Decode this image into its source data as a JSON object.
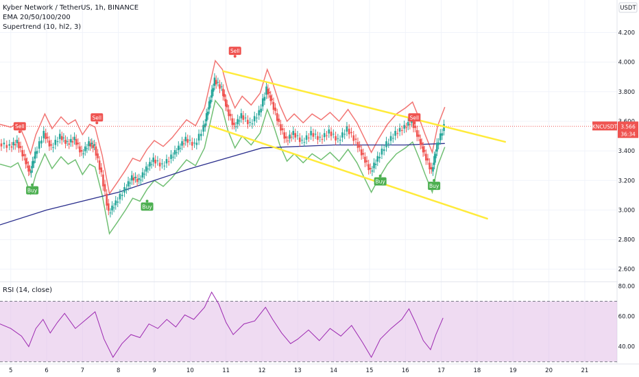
{
  "header": {
    "symbol_line": "Kyber Network / TetherUS, 1h, BINANCE",
    "indicator_1": "EMA 20/50/100/200",
    "indicator_2": "Supertrend (10, hl2, 3)"
  },
  "rsi_panel": {
    "label": "RSI (14, close)"
  },
  "price_axis": {
    "currency": "USDT"
  },
  "last_price": {
    "ticker": "KNCUSDT",
    "value": "3.566",
    "countdown": "36:34"
  },
  "colors": {
    "up": "#26a69a",
    "down": "#ef5350",
    "trendline": "#ffeb3b",
    "rsi_line": "#9c27b0",
    "rsi_band": "#e1bee7",
    "ema_long": "#2a2e8c"
  },
  "chart_data": {
    "type": "line",
    "price_ticks": [
      "4.200",
      "4.000",
      "3.800",
      "3.600",
      "3.400",
      "3.200",
      "3.000",
      "2.800",
      "2.600"
    ],
    "price_tick_values": [
      4.2,
      4.0,
      3.8,
      3.6,
      3.4,
      3.2,
      3.0,
      2.8,
      2.6
    ],
    "x_ticks": [
      "5",
      "6",
      "7",
      "8",
      "9",
      "10",
      "11",
      "12",
      "13",
      "14",
      "15",
      "16",
      "17",
      "18",
      "19",
      "20",
      "21"
    ],
    "rsi_ticks": [
      "80.00",
      "60.00",
      "40.00"
    ],
    "rsi_tick_values": [
      80,
      60,
      40
    ],
    "price_range": [
      2.52,
      4.42
    ],
    "rsi_range": [
      29,
      82
    ],
    "day_range": [
      4.7,
      21.9
    ],
    "signals": [
      {
        "type": "Sell",
        "day": 5.25,
        "price": 3.52
      },
      {
        "type": "Buy",
        "day": 5.6,
        "price": 3.18
      },
      {
        "type": "Sell",
        "day": 7.4,
        "price": 3.58
      },
      {
        "type": "Buy",
        "day": 8.8,
        "price": 3.07
      },
      {
        "type": "Sell",
        "day": 11.25,
        "price": 4.03
      },
      {
        "type": "Buy",
        "day": 15.3,
        "price": 3.24
      },
      {
        "type": "Sell",
        "day": 16.25,
        "price": 3.58
      },
      {
        "type": "Buy",
        "day": 16.8,
        "price": 3.21
      }
    ],
    "trendlines": [
      {
        "from": [
          10.9,
          3.94
        ],
        "to": [
          18.8,
          3.46
        ]
      },
      {
        "from": [
          10.55,
          3.57
        ],
        "to": [
          18.3,
          2.94
        ]
      }
    ],
    "rsi": {
      "upper": 70,
      "lower": 30,
      "points": [
        [
          4.7,
          55
        ],
        [
          5.0,
          52
        ],
        [
          5.3,
          47
        ],
        [
          5.5,
          40
        ],
        [
          5.7,
          52
        ],
        [
          5.9,
          58
        ],
        [
          6.1,
          49
        ],
        [
          6.3,
          56
        ],
        [
          6.5,
          62
        ],
        [
          6.8,
          52
        ],
        [
          7.1,
          58
        ],
        [
          7.35,
          63
        ],
        [
          7.6,
          45
        ],
        [
          7.85,
          33
        ],
        [
          8.1,
          42
        ],
        [
          8.35,
          48
        ],
        [
          8.6,
          46
        ],
        [
          8.85,
          55
        ],
        [
          9.1,
          52
        ],
        [
          9.35,
          58
        ],
        [
          9.6,
          53
        ],
        [
          9.85,
          61
        ],
        [
          10.1,
          58
        ],
        [
          10.4,
          66
        ],
        [
          10.6,
          76
        ],
        [
          10.8,
          68
        ],
        [
          11.0,
          56
        ],
        [
          11.2,
          48
        ],
        [
          11.5,
          55
        ],
        [
          11.8,
          57
        ],
        [
          12.1,
          66
        ],
        [
          12.3,
          58
        ],
        [
          12.55,
          49
        ],
        [
          12.8,
          42
        ],
        [
          13.0,
          45
        ],
        [
          13.3,
          51
        ],
        [
          13.6,
          44
        ],
        [
          13.9,
          52
        ],
        [
          14.2,
          47
        ],
        [
          14.5,
          54
        ],
        [
          14.8,
          43
        ],
        [
          15.05,
          33
        ],
        [
          15.3,
          45
        ],
        [
          15.6,
          52
        ],
        [
          15.9,
          58
        ],
        [
          16.1,
          65
        ],
        [
          16.3,
          55
        ],
        [
          16.5,
          44
        ],
        [
          16.7,
          38
        ],
        [
          16.85,
          48
        ],
        [
          17.05,
          59
        ]
      ]
    },
    "series": [
      {
        "kind": "price",
        "points": [
          [
            4.7,
            3.45
          ],
          [
            5.0,
            3.43
          ],
          [
            5.2,
            3.46
          ],
          [
            5.4,
            3.35
          ],
          [
            5.55,
            3.25
          ],
          [
            5.7,
            3.38
          ],
          [
            5.95,
            3.52
          ],
          [
            6.15,
            3.42
          ],
          [
            6.4,
            3.5
          ],
          [
            6.6,
            3.45
          ],
          [
            6.8,
            3.48
          ],
          [
            7.0,
            3.38
          ],
          [
            7.2,
            3.45
          ],
          [
            7.35,
            3.43
          ],
          [
            7.55,
            3.24
          ],
          [
            7.75,
            2.98
          ],
          [
            7.95,
            3.05
          ],
          [
            8.2,
            3.14
          ],
          [
            8.4,
            3.22
          ],
          [
            8.6,
            3.2
          ],
          [
            8.8,
            3.28
          ],
          [
            9.0,
            3.34
          ],
          [
            9.25,
            3.3
          ],
          [
            9.5,
            3.36
          ],
          [
            9.7,
            3.42
          ],
          [
            9.9,
            3.48
          ],
          [
            10.15,
            3.44
          ],
          [
            10.4,
            3.56
          ],
          [
            10.55,
            3.72
          ],
          [
            10.7,
            3.88
          ],
          [
            10.9,
            3.82
          ],
          [
            11.05,
            3.68
          ],
          [
            11.25,
            3.56
          ],
          [
            11.45,
            3.64
          ],
          [
            11.7,
            3.58
          ],
          [
            11.95,
            3.66
          ],
          [
            12.15,
            3.82
          ],
          [
            12.3,
            3.73
          ],
          [
            12.5,
            3.58
          ],
          [
            12.7,
            3.47
          ],
          [
            12.9,
            3.52
          ],
          [
            13.15,
            3.46
          ],
          [
            13.4,
            3.52
          ],
          [
            13.65,
            3.48
          ],
          [
            13.9,
            3.53
          ],
          [
            14.15,
            3.47
          ],
          [
            14.4,
            3.55
          ],
          [
            14.65,
            3.46
          ],
          [
            14.85,
            3.36
          ],
          [
            15.05,
            3.26
          ],
          [
            15.25,
            3.35
          ],
          [
            15.5,
            3.45
          ],
          [
            15.75,
            3.52
          ],
          [
            16.0,
            3.56
          ],
          [
            16.2,
            3.6
          ],
          [
            16.4,
            3.48
          ],
          [
            16.55,
            3.38
          ],
          [
            16.75,
            3.26
          ],
          [
            16.9,
            3.44
          ],
          [
            17.1,
            3.566
          ]
        ]
      },
      {
        "kind": "ema_long",
        "points": [
          [
            4.7,
            2.9
          ],
          [
            6.0,
            3.0
          ],
          [
            8.0,
            3.12
          ],
          [
            10.0,
            3.28
          ],
          [
            12.0,
            3.42
          ],
          [
            14.0,
            3.44
          ],
          [
            16.0,
            3.44
          ],
          [
            17.1,
            3.45
          ]
        ]
      }
    ]
  }
}
